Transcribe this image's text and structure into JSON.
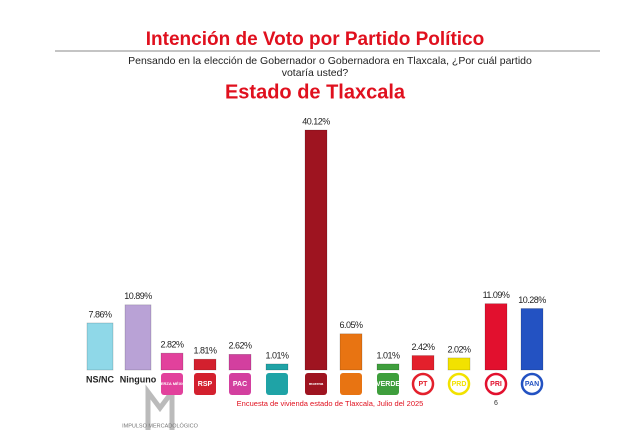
{
  "chart_data": {
    "type": "bar",
    "title": "Intención de Voto por Partido Político",
    "subtitle": [
      "Pensando en la elección de Gobernador o Gobernadora en Tlaxcala, ¿Por cuál partido",
      "votaría usted?"
    ],
    "heading": "Estado de Tlaxcala",
    "categories": [
      "NS/NC",
      "Ninguno",
      "FUERZA MÉXICO",
      "RSP",
      "PAC",
      null,
      "morena",
      null,
      "VERDE",
      "PT",
      "PRD",
      "PRI",
      "PAN"
    ],
    "values": [
      7.86,
      10.89,
      2.82,
      1.81,
      2.62,
      1.01,
      40.12,
      6.05,
      1.01,
      2.42,
      2.02,
      11.09,
      10.28
    ],
    "value_labels": [
      "7.86%",
      "10.89%",
      "2.82%",
      "1.81%",
      "2.62%",
      "1.01%",
      "40.12%",
      "6.05%",
      "1.01%",
      "2.42%",
      "2.02%",
      "11.09%",
      "10.28%"
    ],
    "colors": [
      "#8fd8e8",
      "#b9a2d6",
      "#e2419c",
      "#d3202e",
      "#d33f9f",
      "#1fa3a6",
      "#9e1420",
      "#e87412",
      "#3e9e3c",
      "#e3202c",
      "#f2e200",
      "#e2102e",
      "#2352c2"
    ],
    "note": "6",
    "footer": "Encuesta de vivienda estado de Tlaxcala, Julio   del 2025",
    "brand": "IMPULSO MERCADOLÓGICO"
  }
}
